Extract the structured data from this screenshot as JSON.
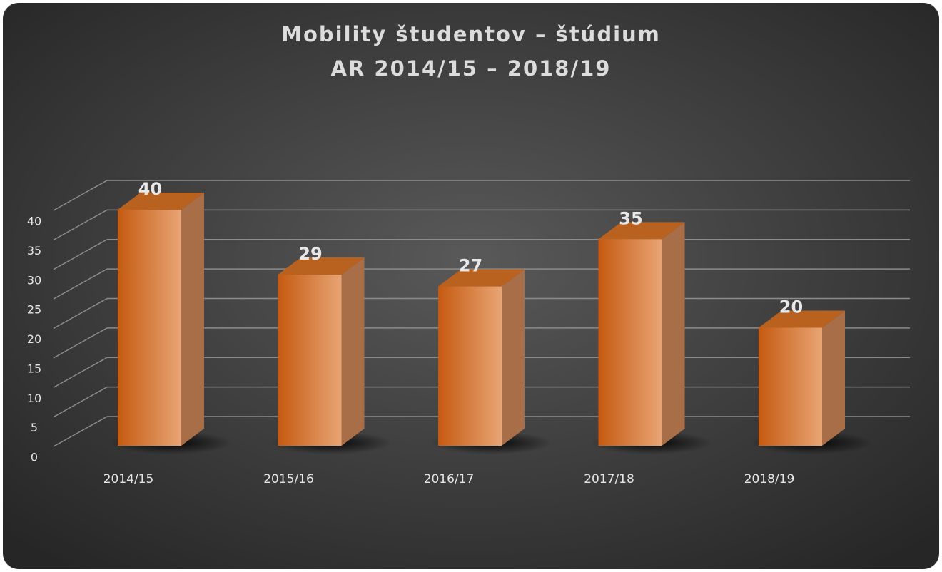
{
  "chart_data": {
    "type": "bar3d",
    "title": "Mobility študentov – štúdium",
    "subtitle": "AR 2014/15 – 2018/19",
    "categories": [
      "2014/15",
      "2015/16",
      "2016/17",
      "2017/18",
      "2018/19"
    ],
    "values": [
      40,
      29,
      27,
      35,
      20
    ],
    "color": "#d2691e",
    "ylim": [
      0,
      40
    ],
    "yticks": [
      0,
      5,
      10,
      15,
      20,
      25,
      30,
      35,
      40
    ],
    "grid": true
  }
}
